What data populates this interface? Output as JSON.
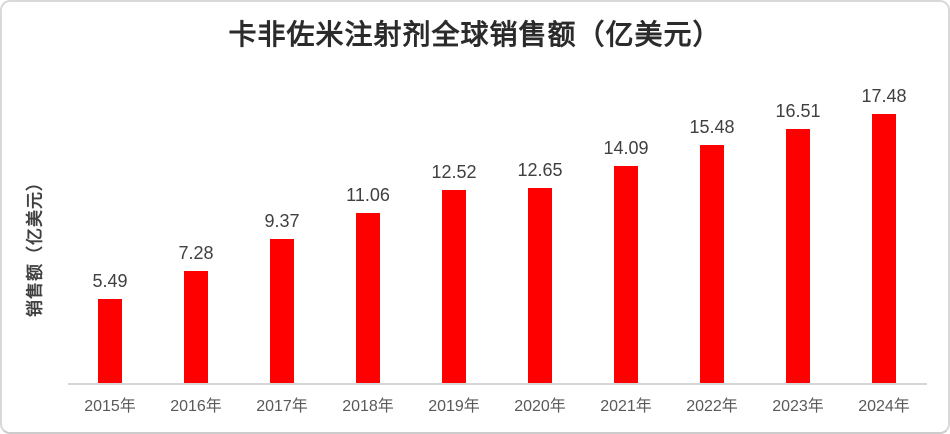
{
  "chart_data": {
    "type": "bar",
    "title": "卡非佐米注射剂全球销售额（亿美元）",
    "xlabel": "",
    "ylabel": "销售额（亿美元）",
    "categories": [
      "2015年",
      "2016年",
      "2017年",
      "2018年",
      "2019年",
      "2020年",
      "2021年",
      "2022年",
      "2023年",
      "2024年"
    ],
    "values": [
      5.49,
      7.28,
      9.37,
      11.06,
      12.52,
      12.65,
      14.09,
      15.48,
      16.51,
      17.48
    ],
    "value_labels": [
      "5.49",
      "7.28",
      "9.37",
      "11.06",
      "12.52",
      "12.65",
      "14.09",
      "15.48",
      "16.51",
      "17.48"
    ],
    "ylim": [
      0,
      18
    ],
    "grid": false,
    "legend": "none",
    "colors": {
      "bar": "#ff0000",
      "title_text": "#2b2b2b",
      "value_label_text": "#404040",
      "axis_tick_text": "#595959",
      "y_axis_title_text": "#404040",
      "axis_line": "#d6d6d6",
      "card_border": "#d9d9d9",
      "background": "#ffffff"
    }
  }
}
